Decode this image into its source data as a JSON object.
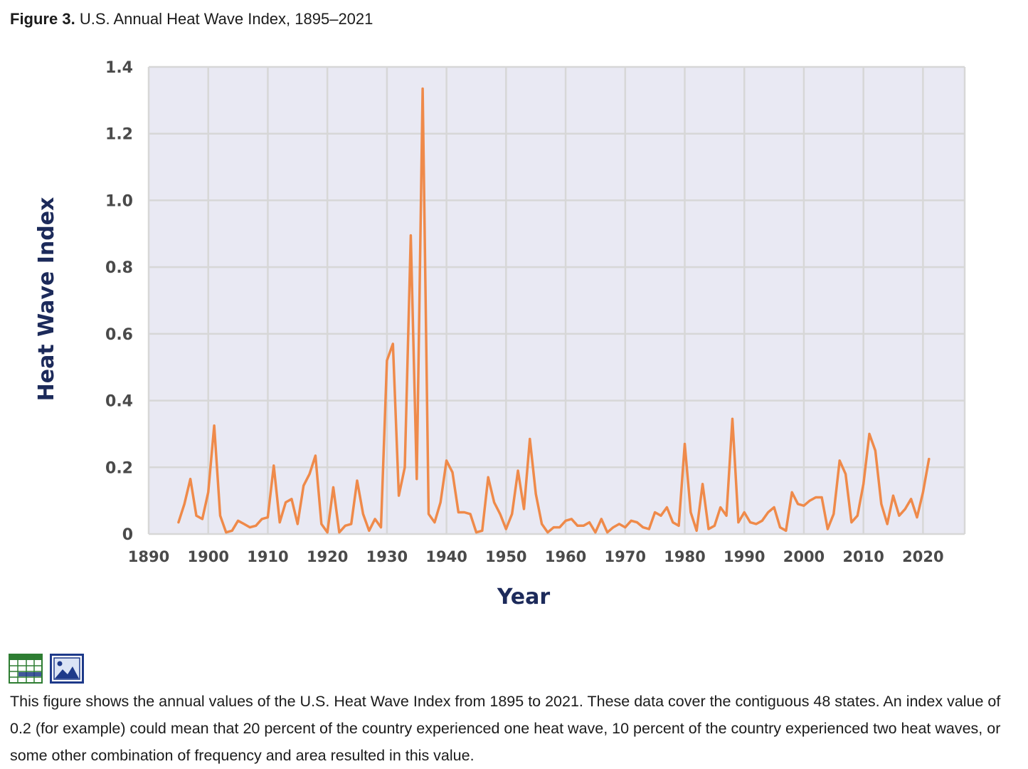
{
  "figure": {
    "label": "Figure 3.",
    "title": "U.S. Annual Heat Wave Index, 1895–2021"
  },
  "caption": "This figure shows the annual values of the U.S. Heat Wave Index from 1895 to 2021. These data cover the contiguous 48 states. An index value of 0.2 (for example) could mean that 20 percent of the country experienced one heat wave, 10 percent of the country experienced two heat waves, or some other combination of frequency and area resulted in this value.",
  "icons": [
    {
      "name": "data-table-icon"
    },
    {
      "name": "image-icon"
    }
  ],
  "colors": {
    "line": "#ef8a4a",
    "grid": "#d7d7d7",
    "plot_bg": "#e9e9f3",
    "axis_title": "#1c2a5a"
  },
  "chart_data": {
    "type": "line",
    "title": "U.S. Annual Heat Wave Index, 1895–2021",
    "xlabel": "Year",
    "ylabel": "Heat Wave Index",
    "xlim": [
      1890,
      2027
    ],
    "ylim": [
      0,
      1.4
    ],
    "xticks": [
      1890,
      1900,
      1910,
      1920,
      1930,
      1940,
      1950,
      1960,
      1970,
      1980,
      1990,
      2000,
      2010,
      2020
    ],
    "yticks": [
      0,
      0.2,
      0.4,
      0.6,
      0.8,
      1.0,
      1.2,
      1.4
    ],
    "ytick_labels": [
      "0",
      "0.2",
      "0.4",
      "0.6",
      "0.8",
      "1.0",
      "1.2",
      "1.4"
    ],
    "grid": true,
    "series": [
      {
        "name": "Heat Wave Index",
        "x": [
          1895,
          1896,
          1897,
          1898,
          1899,
          1900,
          1901,
          1902,
          1903,
          1904,
          1905,
          1906,
          1907,
          1908,
          1909,
          1910,
          1911,
          1912,
          1913,
          1914,
          1915,
          1916,
          1917,
          1918,
          1919,
          1920,
          1921,
          1922,
          1923,
          1924,
          1925,
          1926,
          1927,
          1928,
          1929,
          1930,
          1931,
          1932,
          1933,
          1934,
          1935,
          1936,
          1937,
          1938,
          1939,
          1940,
          1941,
          1942,
          1943,
          1944,
          1945,
          1946,
          1947,
          1948,
          1949,
          1950,
          1951,
          1952,
          1953,
          1954,
          1955,
          1956,
          1957,
          1958,
          1959,
          1960,
          1961,
          1962,
          1963,
          1964,
          1965,
          1966,
          1967,
          1968,
          1969,
          1970,
          1971,
          1972,
          1973,
          1974,
          1975,
          1976,
          1977,
          1978,
          1979,
          1980,
          1981,
          1982,
          1983,
          1984,
          1985,
          1986,
          1987,
          1988,
          1989,
          1990,
          1991,
          1992,
          1993,
          1994,
          1995,
          1996,
          1997,
          1998,
          1999,
          2000,
          2001,
          2002,
          2003,
          2004,
          2005,
          2006,
          2007,
          2008,
          2009,
          2010,
          2011,
          2012,
          2013,
          2014,
          2015,
          2016,
          2017,
          2018,
          2019,
          2020,
          2021
        ],
        "values": [
          0.035,
          0.09,
          0.165,
          0.055,
          0.045,
          0.125,
          0.325,
          0.055,
          0.005,
          0.01,
          0.04,
          0.03,
          0.02,
          0.025,
          0.045,
          0.05,
          0.205,
          0.035,
          0.095,
          0.105,
          0.03,
          0.145,
          0.18,
          0.235,
          0.03,
          0.005,
          0.14,
          0.005,
          0.025,
          0.03,
          0.16,
          0.06,
          0.01,
          0.045,
          0.02,
          0.52,
          0.57,
          0.115,
          0.2,
          0.895,
          0.165,
          1.335,
          0.06,
          0.035,
          0.095,
          0.22,
          0.185,
          0.065,
          0.065,
          0.06,
          0.005,
          0.01,
          0.17,
          0.095,
          0.06,
          0.015,
          0.06,
          0.19,
          0.075,
          0.285,
          0.12,
          0.03,
          0.005,
          0.02,
          0.02,
          0.04,
          0.045,
          0.025,
          0.025,
          0.035,
          0.005,
          0.045,
          0.005,
          0.02,
          0.03,
          0.02,
          0.04,
          0.035,
          0.02,
          0.015,
          0.065,
          0.055,
          0.08,
          0.035,
          0.025,
          0.27,
          0.065,
          0.01,
          0.15,
          0.015,
          0.025,
          0.08,
          0.055,
          0.345,
          0.035,
          0.065,
          0.035,
          0.03,
          0.04,
          0.065,
          0.08,
          0.02,
          0.01,
          0.125,
          0.09,
          0.085,
          0.1,
          0.11,
          0.11,
          0.015,
          0.06,
          0.22,
          0.18,
          0.035,
          0.055,
          0.15,
          0.3,
          0.25,
          0.09,
          0.03,
          0.115,
          0.055,
          0.075,
          0.105,
          0.05,
          0.125,
          0.225
        ]
      }
    ]
  }
}
